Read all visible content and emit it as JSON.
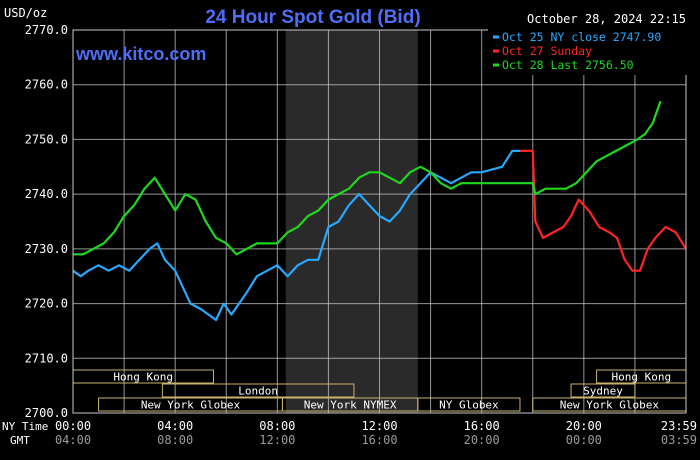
{
  "header": {
    "unit": "USD/oz",
    "title": "24 Hour Spot Gold (Bid)",
    "timestamp": "October 28, 2024 22:15",
    "website": "www.kitco.com"
  },
  "colors": {
    "background": "#000000",
    "plot_grid": "#c8c8c8",
    "shade": "#2a2a2a",
    "title": "#4f6ef7",
    "website": "#4f6ef7",
    "oct25": "#29a8ff",
    "oct27": "#ff2424",
    "oct28": "#1ed81e",
    "session_bar": "#c8b46e",
    "text": "#ffffff"
  },
  "legend": [
    {
      "label": "Oct 25 NY close 2747.90",
      "color_key": "oct25"
    },
    {
      "label": "Oct 27 Sunday",
      "color_key": "oct27"
    },
    {
      "label": "Oct 28 Last 2756.50",
      "color_key": "oct28"
    }
  ],
  "axis_rows": {
    "ny_label": "NY Time",
    "gmt_label": "GMT",
    "ny_times": [
      "00:00",
      "04:00",
      "08:00",
      "12:00",
      "16:00",
      "20:00",
      "23:59"
    ],
    "gmt_times": [
      "04:00",
      "08:00",
      "12:00",
      "16:00",
      "20:00",
      "00:00",
      "03:59"
    ]
  },
  "sessions": [
    {
      "label": "Hong Kong",
      "start_hr": 0,
      "end_hr": 5.5,
      "row": 0
    },
    {
      "label": "London",
      "start_hr": 3.5,
      "end_hr": 11,
      "row": 1
    },
    {
      "label": "New York Globex",
      "start_hr": 1,
      "end_hr": 8.2,
      "row": 2
    },
    {
      "label": "New York NYMEX",
      "start_hr": 8.2,
      "end_hr": 13.5,
      "row": 2
    },
    {
      "label": "NY Globex",
      "start_hr": 13.5,
      "end_hr": 17.5,
      "row": 2
    },
    {
      "label": "Hong Kong",
      "start_hr": 20.5,
      "end_hr": 24,
      "row": 0
    },
    {
      "label": "Sydney",
      "start_hr": 19.5,
      "end_hr": 22,
      "row": 1
    },
    {
      "label": "New York Globex",
      "start_hr": 18,
      "end_hr": 24,
      "row": 2
    }
  ],
  "chart_data": {
    "type": "line",
    "title": "24 Hour Spot Gold (Bid)",
    "ylabel": "USD/oz",
    "xlabel": "",
    "xlim": [
      0,
      24
    ],
    "ylim": [
      2700,
      2770
    ],
    "y_ticks": [
      2700.0,
      2710.0,
      2720.0,
      2730.0,
      2740.0,
      2750.0,
      2760.0,
      2770.0
    ],
    "y_tick_labels": [
      "2700.0",
      "2710.0",
      "2720.0",
      "2730.0",
      "2740.0",
      "2750.0",
      "2760.0",
      "2770.0"
    ],
    "x_ticks": [
      0,
      4,
      8,
      12,
      16,
      20,
      23.983
    ],
    "shaded_region": [
      8.33,
      13.5
    ],
    "grid": true,
    "series": [
      {
        "name": "Oct 25 NY close 2747.90",
        "color_key": "oct25",
        "x": [
          0,
          0.3,
          0.6,
          1.0,
          1.4,
          1.8,
          2.2,
          2.6,
          3.0,
          3.3,
          3.6,
          4.0,
          4.3,
          4.6,
          5.0,
          5.3,
          5.6,
          5.9,
          6.2,
          6.5,
          6.8,
          7.2,
          7.6,
          8.0,
          8.4,
          8.8,
          9.2,
          9.6,
          10.0,
          10.4,
          10.8,
          11.2,
          11.6,
          12.0,
          12.4,
          12.8,
          13.2,
          13.6,
          14.0,
          14.4,
          14.8,
          15.2,
          15.6,
          16.0,
          16.4,
          16.8,
          17.2,
          17.5
        ],
        "y": [
          2726,
          2725,
          2726,
          2727,
          2726,
          2727,
          2726,
          2728,
          2730,
          2731,
          2728,
          2726,
          2723,
          2720,
          2719,
          2718,
          2717,
          2720,
          2718,
          2720,
          2722,
          2725,
          2726,
          2727,
          2725,
          2727,
          2728,
          2728,
          2734,
          2735,
          2738,
          2740,
          2738,
          2736,
          2735,
          2737,
          2740,
          2742,
          2744,
          2743,
          2742,
          2743,
          2744,
          2744,
          2744.5,
          2745,
          2747.9,
          2747.9
        ]
      },
      {
        "name": "Oct 27 Sunday",
        "color_key": "oct27",
        "x": [
          17.5,
          18.0,
          18.1,
          18.4,
          18.8,
          19.2,
          19.5,
          19.8,
          20.2,
          20.6,
          21.0,
          21.3,
          21.6,
          21.9,
          22.2,
          22.5,
          22.8,
          23.2,
          23.6,
          24.0
        ],
        "y": [
          2747.9,
          2747.9,
          2735,
          2732,
          2733,
          2734,
          2736,
          2739,
          2737,
          2734,
          2733,
          2732,
          2728,
          2726,
          2726,
          2730,
          2732,
          2734,
          2733,
          2730
        ]
      },
      {
        "name": "Oct 28 Last 2756.50",
        "color_key": "oct28",
        "x": [
          0,
          0.4,
          0.8,
          1.2,
          1.6,
          2.0,
          2.4,
          2.8,
          3.2,
          3.6,
          4.0,
          4.4,
          4.8,
          5.2,
          5.6,
          6.0,
          6.4,
          6.8,
          7.2,
          7.6,
          8.0,
          8.4,
          8.8,
          9.2,
          9.6,
          10.0,
          10.4,
          10.8,
          11.2,
          11.6,
          12.0,
          12.4,
          12.8,
          13.2,
          13.6,
          14.0,
          14.4,
          14.8,
          15.2,
          15.6,
          16.0,
          16.4,
          16.8,
          17.2,
          17.6,
          18.0,
          18.1,
          18.5,
          18.9,
          19.3,
          19.7,
          20.1,
          20.5,
          20.9,
          21.3,
          21.7,
          22.1,
          22.4,
          22.7,
          23.0
        ],
        "y": [
          2729,
          2729,
          2730,
          2731,
          2733,
          2736,
          2738,
          2741,
          2743,
          2740,
          2737,
          2740,
          2739,
          2735,
          2732,
          2731,
          2729,
          2730,
          2731,
          2731,
          2731,
          2733,
          2734,
          2736,
          2737,
          2739,
          2740,
          2741,
          2743,
          2744,
          2744,
          2743,
          2742,
          2744,
          2745,
          2744,
          2742,
          2741,
          2742,
          2742,
          2742,
          2742,
          2742,
          2742,
          2742,
          2742,
          2740,
          2741,
          2741,
          2741,
          2742,
          2744,
          2746,
          2747,
          2748,
          2749,
          2750,
          2751,
          2753,
          2757
        ]
      }
    ]
  }
}
